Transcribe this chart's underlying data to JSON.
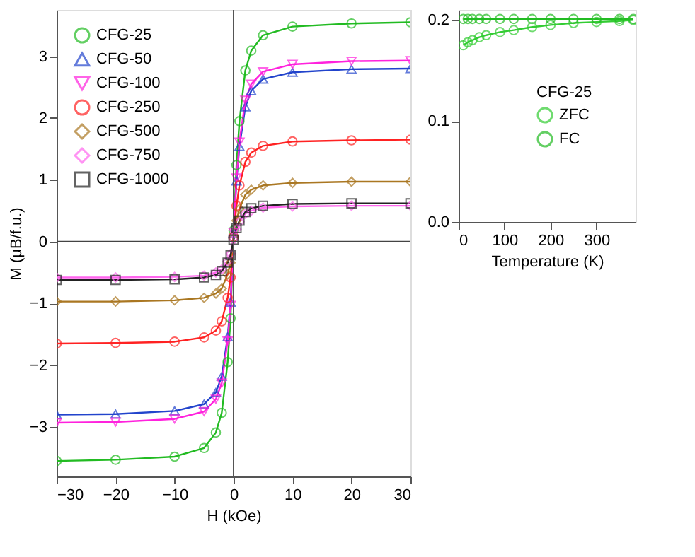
{
  "chart_data": [
    {
      "type": "line",
      "xlabel": "H (kOe)",
      "ylabel": "M (μB/f.u.)",
      "xlim": [
        -30,
        30
      ],
      "ylim": [
        -3.8,
        3.75
      ],
      "xticks": [
        -30,
        -20,
        -10,
        0,
        10,
        20,
        30
      ],
      "yticks": [
        -3,
        -2,
        -1,
        0,
        1,
        2,
        3
      ],
      "grid": false,
      "legend": "top left",
      "x": [
        -30,
        -20,
        -10,
        -5,
        -3,
        -2,
        -1,
        -0.5,
        0,
        0.5,
        1,
        2,
        3,
        5,
        10,
        20,
        30
      ],
      "series": [
        {
          "name": "CFG-25",
          "color": "#22bb22",
          "marker": "circle",
          "values": [
            -3.55,
            -3.53,
            -3.48,
            -3.34,
            -3.09,
            -2.77,
            -1.95,
            -1.24,
            0.18,
            1.24,
            1.95,
            2.77,
            3.09,
            3.34,
            3.48,
            3.53,
            3.55
          ]
        },
        {
          "name": "CFG-50",
          "color": "#2244cc",
          "marker": "triangle",
          "values": [
            -2.8,
            -2.79,
            -2.74,
            -2.63,
            -2.44,
            -2.18,
            -1.54,
            -0.98,
            0.14,
            0.98,
            1.54,
            2.18,
            2.44,
            2.63,
            2.74,
            2.79,
            2.8
          ]
        },
        {
          "name": "CFG-100",
          "color": "#ff22dd",
          "marker": "triangle-down",
          "values": [
            -2.93,
            -2.92,
            -2.87,
            -2.75,
            -2.55,
            -2.29,
            -1.61,
            -1.03,
            0.15,
            1.03,
            1.61,
            2.29,
            2.55,
            2.75,
            2.87,
            2.92,
            2.93
          ]
        },
        {
          "name": "CFG-250",
          "color": "#ff2222",
          "marker": "circle",
          "values": [
            -1.65,
            -1.64,
            -1.62,
            -1.55,
            -1.44,
            -1.29,
            -0.91,
            -0.58,
            0.08,
            0.58,
            0.91,
            1.29,
            1.44,
            1.55,
            1.62,
            1.64,
            1.65
          ]
        },
        {
          "name": "CFG-500",
          "color": "#aa7722",
          "marker": "diamond",
          "values": [
            -0.97,
            -0.97,
            -0.95,
            -0.91,
            -0.84,
            -0.76,
            -0.53,
            -0.34,
            0.05,
            0.34,
            0.53,
            0.76,
            0.84,
            0.91,
            0.95,
            0.97,
            0.97
          ]
        },
        {
          "name": "CFG-750",
          "color": "#ff66ee",
          "marker": "diamond",
          "values": [
            -0.58,
            -0.58,
            -0.57,
            -0.55,
            -0.5,
            -0.45,
            -0.32,
            -0.2,
            0.03,
            0.2,
            0.32,
            0.45,
            0.5,
            0.55,
            0.57,
            0.58,
            0.58
          ]
        },
        {
          "name": "CFG-1000",
          "color": "#222222",
          "marker": "square",
          "values": [
            -0.62,
            -0.62,
            -0.61,
            -0.58,
            -0.54,
            -0.48,
            -0.34,
            -0.22,
            0.03,
            0.22,
            0.34,
            0.48,
            0.54,
            0.58,
            0.61,
            0.62,
            0.62
          ]
        }
      ],
      "ref_lines": [
        {
          "axis": "x",
          "value": 0,
          "color": "#555555"
        },
        {
          "axis": "y",
          "value": 0,
          "color": "#444444"
        }
      ]
    },
    {
      "type": "line",
      "xlabel": "Temperature (K)",
      "legend_title": "CFG-25",
      "legend": "right",
      "xlim": [
        0,
        385
      ],
      "ylim": [
        0,
        0.21
      ],
      "xticks": [
        0,
        100,
        200,
        300
      ],
      "yticks": [
        {
          "value": 0,
          "label": "0.0"
        },
        {
          "value": 0.1,
          "label": "0.1"
        },
        {
          "value": 0.2,
          "label": "0.2"
        }
      ],
      "grid": false,
      "x": [
        10,
        20,
        30,
        45,
        60,
        90,
        120,
        160,
        200,
        250,
        300,
        350,
        380
      ],
      "series": [
        {
          "name": "ZFC",
          "color": "#33cc33",
          "marker": "circle",
          "values": [
            0.175,
            0.178,
            0.18,
            0.183,
            0.185,
            0.188,
            0.19,
            0.193,
            0.195,
            0.197,
            0.198,
            0.199,
            0.2
          ]
        },
        {
          "name": "FC",
          "color": "#22bb22",
          "marker": "circle",
          "values": [
            0.201,
            0.201,
            0.201,
            0.201,
            0.201,
            0.201,
            0.201,
            0.201,
            0.201,
            0.201,
            0.201,
            0.201,
            0.201
          ]
        }
      ]
    }
  ]
}
